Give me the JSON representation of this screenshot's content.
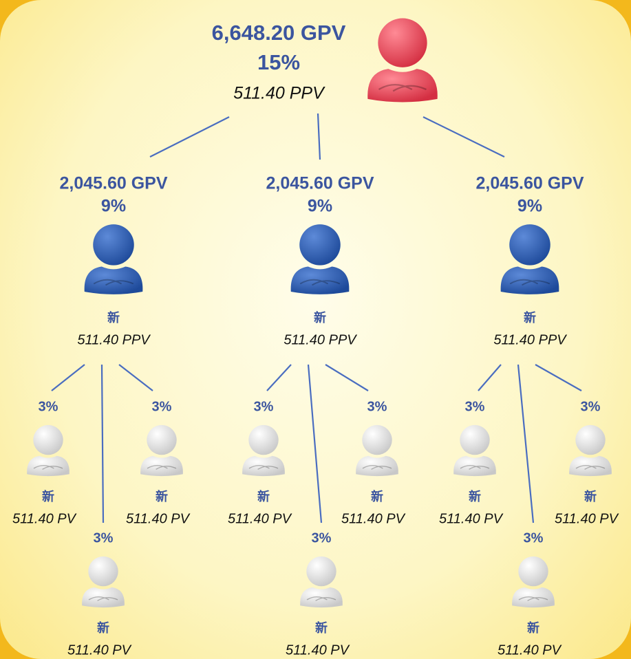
{
  "root": {
    "gpv": "6,648.20 GPV",
    "pct": "15%",
    "ppv": "511.40 PPV"
  },
  "branches": [
    {
      "gpv": "2,045.60 GPV",
      "pct": "9%",
      "label": "新",
      "ppv": "511.40 PPV",
      "children": [
        {
          "pct": "3%",
          "label": "新",
          "pv": "511.40 PV"
        },
        {
          "pct": "3%",
          "label": "新",
          "pv": "511.40 PV"
        },
        {
          "pct": "3%",
          "label": "新",
          "pv": "511.40 PV"
        }
      ]
    },
    {
      "gpv": "2,045.60 GPV",
      "pct": "9%",
      "label": "新",
      "ppv": "511.40 PPV",
      "children": [
        {
          "pct": "3%",
          "label": "新",
          "pv": "511.40 PV"
        },
        {
          "pct": "3%",
          "label": "新",
          "pv": "511.40 PV"
        },
        {
          "pct": "3%",
          "label": "新",
          "pv": "511.40 PV"
        }
      ]
    },
    {
      "gpv": "2,045.60 GPV",
      "pct": "9%",
      "label": "新",
      "ppv": "511.40 PPV",
      "children": [
        {
          "pct": "3%",
          "label": "新",
          "pv": "511.40 PV"
        },
        {
          "pct": "3%",
          "label": "新",
          "pv": "511.40 PV"
        },
        {
          "pct": "3%",
          "label": "新",
          "pv": "511.40 PV"
        }
      ]
    }
  ]
}
